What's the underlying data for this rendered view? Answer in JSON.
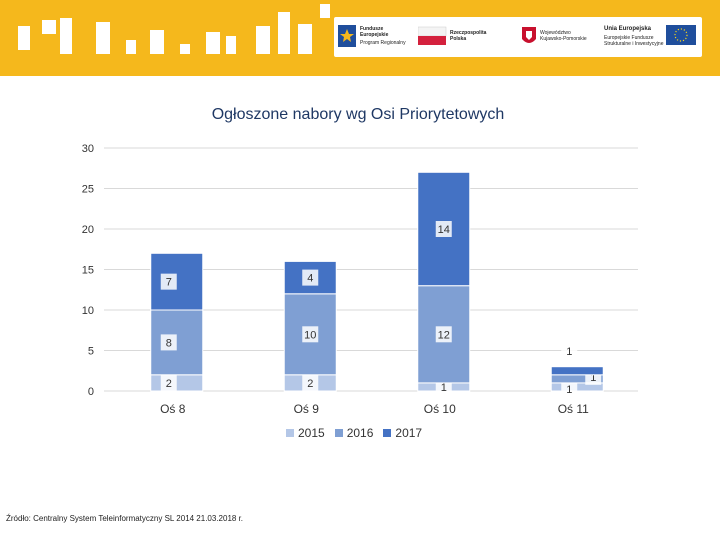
{
  "banner": {
    "logos": [
      {
        "name": "Fundusze Europejskie",
        "text": "Fundusze Europejskie",
        "sub": "Program Regionalny"
      },
      {
        "name": "Rzeczpospolita Polska",
        "text": "Rzeczpospolita Polska"
      },
      {
        "name": "Województwo Kujawsko-Pomorskie",
        "text": "Województwo Kujawsko-Pomorskie"
      },
      {
        "name": "Unia Europejska",
        "text": "Unia Europejska",
        "sub": "Europejskie Fundusze Strukturalne i Inwestycyjne"
      }
    ]
  },
  "chart_data": {
    "type": "bar",
    "stacked": true,
    "title": "Ogłoszone nabory wg Osi Priorytetowych",
    "categories": [
      "Oś 8",
      "Oś 9",
      "Oś 10",
      "Oś 11"
    ],
    "series": [
      {
        "name": "2015",
        "values": [
          2,
          2,
          1,
          1
        ],
        "color": "#b4c7e7"
      },
      {
        "name": "2016",
        "values": [
          8,
          10,
          12,
          1
        ],
        "color": "#7f9fd3"
      },
      {
        "name": "2017",
        "values": [
          7,
          4,
          14,
          1
        ],
        "color": "#4472c4"
      }
    ],
    "ylim": [
      0,
      30
    ],
    "yticks": [
      0,
      5,
      10,
      15,
      20,
      25,
      30
    ],
    "grid": true,
    "legend": "bottom-center"
  },
  "source": "Źródło: Centralny System Teleinformatyczny SL 2014 21.03.2018 r."
}
